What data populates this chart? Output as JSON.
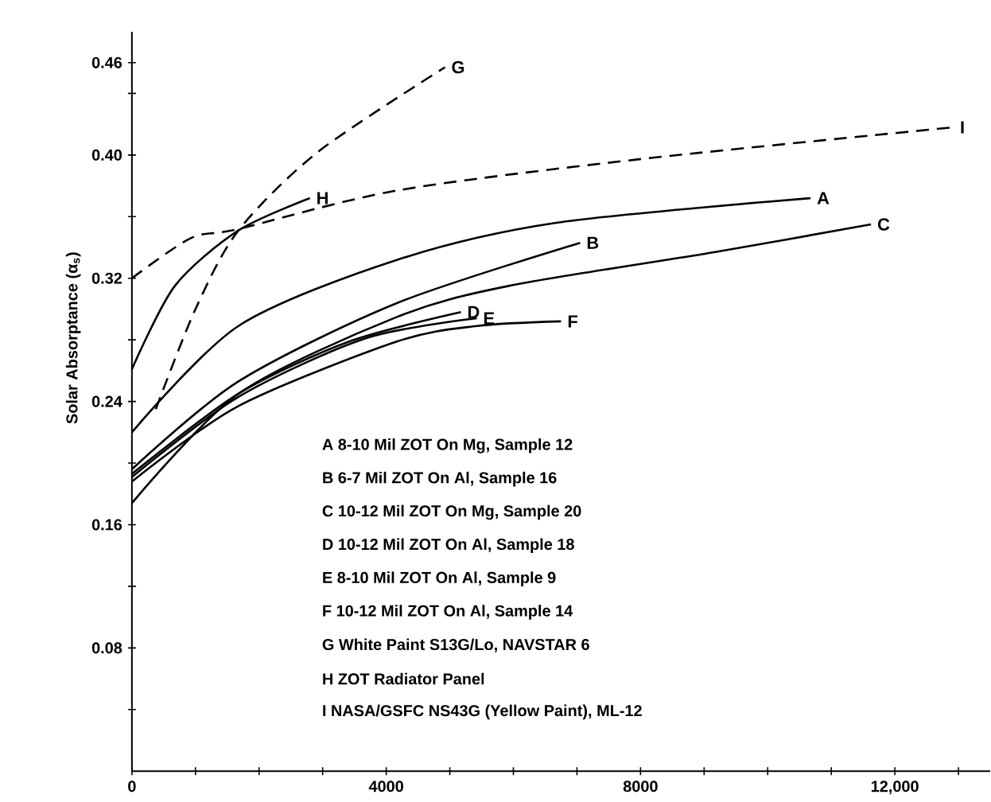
{
  "chart_data": {
    "type": "line",
    "ylabel": "Solar Absorptance (α$_{s}$)",
    "xlim": [
      0,
      13500
    ],
    "ylim": [
      0,
      0.48
    ],
    "xticks": [
      0,
      {
        "value": 1000,
        "label": null
      },
      {
        "value": 2000,
        "label": null
      },
      {
        "value": 3000,
        "label": null
      },
      4000,
      {
        "value": 5000,
        "label": null
      },
      {
        "value": 6000,
        "label": null
      },
      {
        "value": 7000,
        "label": null
      },
      8000,
      {
        "value": 9000,
        "label": null
      },
      {
        "value": 10000,
        "label": null
      },
      {
        "value": 11000,
        "label": null
      },
      {
        "value": 12000,
        "label": "12,000"
      },
      {
        "value": 13000,
        "label": null
      }
    ],
    "yticks": [
      {
        "value": 0.04,
        "label": null
      },
      0.08,
      {
        "value": 0.12,
        "label": null
      },
      0.16,
      {
        "value": 0.2,
        "label": null
      },
      0.24,
      {
        "value": 0.28,
        "label": null
      },
      0.32,
      {
        "value": 0.36,
        "label": null
      },
      {
        "value": 0.4,
        "label": "0.40"
      },
      {
        "value": 0.44,
        "label": null
      },
      0.46
    ],
    "grid": false,
    "marker": "none",
    "series": [
      {
        "name": "A",
        "color": "#000000",
        "line_style": "solid",
        "x": [
          0,
          1675,
          4175,
          6675,
          10675
        ],
        "values": [
          0.22,
          0.289,
          0.332,
          0.356,
          0.372
        ]
      },
      {
        "name": "B",
        "color": "#000000",
        "line_style": "solid",
        "x": [
          0,
          1675,
          4175,
          7050
        ],
        "values": [
          0.196,
          0.253,
          0.304,
          0.343
        ]
      },
      {
        "name": "C",
        "color": "#000000",
        "line_style": "solid",
        "x": [
          0,
          1675,
          4175,
          5925,
          9175,
          11625
        ],
        "values": [
          0.174,
          0.245,
          0.295,
          0.315,
          0.337,
          0.355
        ]
      },
      {
        "name": "D",
        "color": "#000000",
        "line_style": "solid",
        "x": [
          0,
          1675,
          3425,
          5175
        ],
        "values": [
          0.193,
          0.245,
          0.279,
          0.298
        ]
      },
      {
        "name": "E",
        "color": "#000000",
        "line_style": "solid",
        "x": [
          0,
          1675,
          3675,
          5425
        ],
        "values": [
          0.191,
          0.243,
          0.281,
          0.294
        ]
      },
      {
        "name": "F",
        "color": "#000000",
        "line_style": "solid",
        "x": [
          0,
          1675,
          4175,
          5425,
          6750
        ],
        "values": [
          0.188,
          0.237,
          0.279,
          0.289,
          0.292
        ]
      },
      {
        "name": "G",
        "color": "#000000",
        "line_style": "dashed",
        "x": [
          375,
          1000,
          1675,
          2925,
          4925
        ],
        "values": [
          0.235,
          0.3,
          0.351,
          0.402,
          0.457
        ]
      },
      {
        "name": "H",
        "color": "#000000",
        "line_style": "solid",
        "x": [
          0,
          675,
          1675,
          2800
        ],
        "values": [
          0.261,
          0.315,
          0.351,
          0.372
        ]
      },
      {
        "name": "I",
        "color": "#000000",
        "line_style": "dashed",
        "x": [
          0,
          925,
          1675,
          4175,
          7925,
          12925
        ],
        "values": [
          0.32,
          0.346,
          0.352,
          0.377,
          0.397,
          0.418
        ]
      }
    ],
    "annotations": [
      "A  8-10 Mil ZOT On Mg, Sample 12",
      "B  6-7 Mil ZOT On Al, Sample 16",
      "C  10-12 Mil ZOT On Mg, Sample 20",
      "D  10-12 Mil ZOT On Al, Sample 18",
      "E  8-10 Mil ZOT On Al, Sample 9",
      "F  10-12 Mil ZOT On Al, Sample 14",
      "G  White Paint S13G/Lo, NAVSTAR 6",
      "H  ZOT Radiator Panel",
      "I  NASA/GSFC NS43G (Yellow Paint), ML-12"
    ]
  }
}
